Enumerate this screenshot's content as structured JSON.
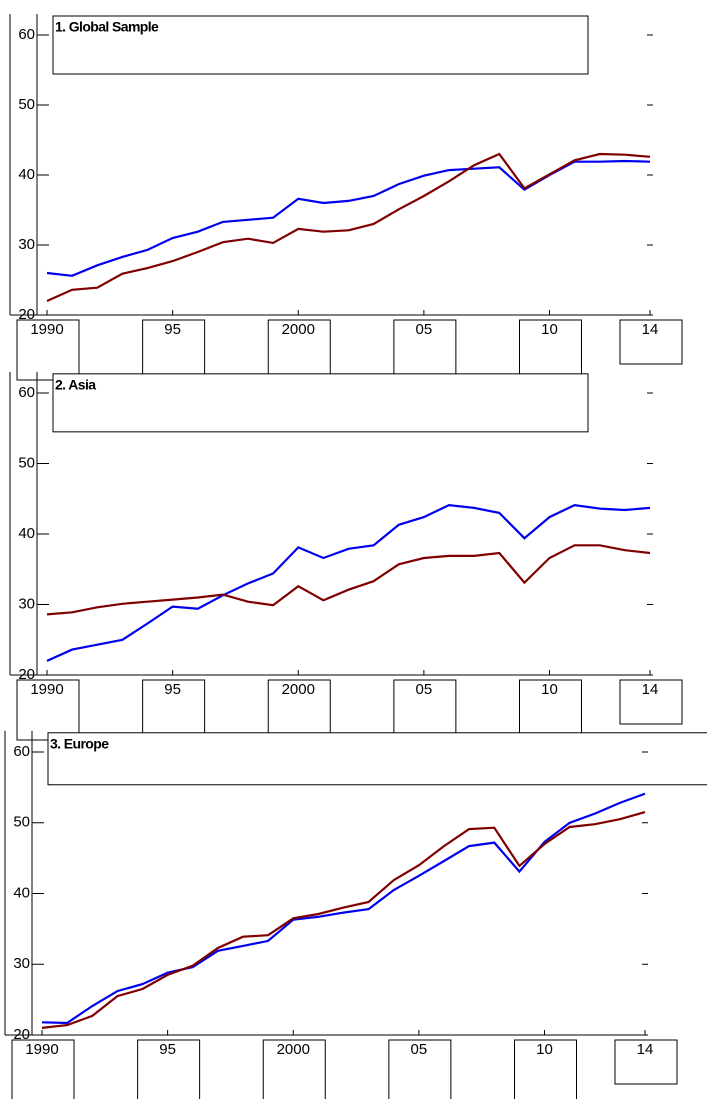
{
  "chart_data": [
    {
      "type": "line",
      "title": "1. Global Sample",
      "x": [
        1990,
        1991,
        1992,
        1993,
        1994,
        1995,
        1996,
        1997,
        1998,
        1999,
        2000,
        2001,
        2002,
        2003,
        2004,
        2005,
        2006,
        2007,
        2008,
        2009,
        2010,
        2011,
        2012,
        2013,
        2014
      ],
      "series": [
        {
          "color": "#0000ee",
          "values": [
            26.0,
            25.6,
            27.1,
            28.3,
            29.3,
            31.0,
            31.9,
            33.3,
            33.6,
            33.9,
            36.6,
            36.0,
            36.3,
            37.0,
            38.7,
            39.9,
            40.7,
            40.9,
            41.1,
            37.9,
            40.0,
            41.9,
            41.9,
            42.0,
            41.9
          ]
        },
        {
          "color": "#800000",
          "values": [
            22.0,
            23.6,
            23.9,
            25.9,
            26.7,
            27.7,
            29.0,
            30.4,
            30.9,
            30.3,
            32.3,
            31.9,
            32.1,
            33.0,
            35.1,
            37.0,
            39.1,
            41.4,
            43.0,
            38.1,
            40.1,
            42.1,
            43.0,
            42.9,
            42.6
          ]
        }
      ],
      "xlim": [
        1990,
        2014
      ],
      "xticks": [
        1990,
        {
          "value": 1995,
          "label": "95"
        },
        2000,
        {
          "value": 2005,
          "label": "05"
        },
        {
          "value": 2010,
          "label": "10"
        },
        {
          "value": 2014,
          "label": "14"
        }
      ],
      "ylim": [
        20,
        63
      ],
      "yticks": [
        20,
        30,
        40,
        50,
        60
      ]
    },
    {
      "type": "line",
      "title": "2. Asia",
      "x": [
        1990,
        1991,
        1992,
        1993,
        1994,
        1995,
        1996,
        1997,
        1998,
        1999,
        2000,
        2001,
        2002,
        2003,
        2004,
        2005,
        2006,
        2007,
        2008,
        2009,
        2010,
        2011,
        2012,
        2013,
        2014
      ],
      "series": [
        {
          "color": "#0000ee",
          "values": [
            22.0,
            23.6,
            24.3,
            25.0,
            27.3,
            29.7,
            29.4,
            31.3,
            33.0,
            34.4,
            38.1,
            36.6,
            37.9,
            38.4,
            41.3,
            42.4,
            44.1,
            43.7,
            43.0,
            39.4,
            42.4,
            44.1,
            43.6,
            43.4,
            43.7
          ]
        },
        {
          "color": "#800000",
          "values": [
            28.6,
            28.9,
            29.6,
            30.1,
            30.4,
            30.7,
            31.0,
            31.4,
            30.4,
            29.9,
            32.6,
            30.6,
            32.1,
            33.3,
            35.7,
            36.6,
            36.9,
            36.9,
            37.3,
            33.1,
            36.6,
            38.4,
            38.4,
            37.7,
            37.3
          ]
        }
      ],
      "xlim": [
        1990,
        2014
      ],
      "xticks": [
        1990,
        {
          "value": 1995,
          "label": "95"
        },
        2000,
        {
          "value": 2005,
          "label": "05"
        },
        {
          "value": 2010,
          "label": "10"
        },
        {
          "value": 2014,
          "label": "14"
        }
      ],
      "ylim": [
        20,
        63
      ],
      "yticks": [
        20,
        30,
        40,
        50,
        60
      ]
    },
    {
      "type": "line",
      "title": "3. Europe",
      "x": [
        1990,
        1991,
        1992,
        1993,
        1994,
        1995,
        1996,
        1997,
        1998,
        1999,
        2000,
        2001,
        2002,
        2003,
        2004,
        2005,
        2006,
        2007,
        2008,
        2009,
        2010,
        2011,
        2012,
        2013,
        2014
      ],
      "series": [
        {
          "color": "#0000ee",
          "values": [
            21.8,
            21.7,
            24.1,
            26.2,
            27.2,
            28.8,
            29.6,
            31.9,
            32.6,
            33.3,
            36.3,
            36.7,
            37.3,
            37.8,
            40.5,
            42.5,
            44.6,
            46.7,
            47.2,
            43.1,
            47.3,
            50.0,
            51.3,
            52.8,
            54.1
          ]
        },
        {
          "color": "#800000",
          "values": [
            21.0,
            21.4,
            22.7,
            25.5,
            26.5,
            28.5,
            29.8,
            32.3,
            33.9,
            34.1,
            36.5,
            37.1,
            38.0,
            38.8,
            41.9,
            44.0,
            46.7,
            49.1,
            49.3,
            43.9,
            47.0,
            49.4,
            49.8,
            50.5,
            51.5
          ]
        }
      ],
      "xlim": [
        1990,
        2014
      ],
      "xticks": [
        1990,
        {
          "value": 1995,
          "label": "95"
        },
        2000,
        {
          "value": 2005,
          "label": "05"
        },
        {
          "value": 2010,
          "label": "10"
        },
        {
          "value": 2014,
          "label": "14"
        }
      ],
      "ylim": [
        20,
        63
      ],
      "yticks": [
        20,
        30,
        40,
        50,
        60
      ]
    }
  ]
}
